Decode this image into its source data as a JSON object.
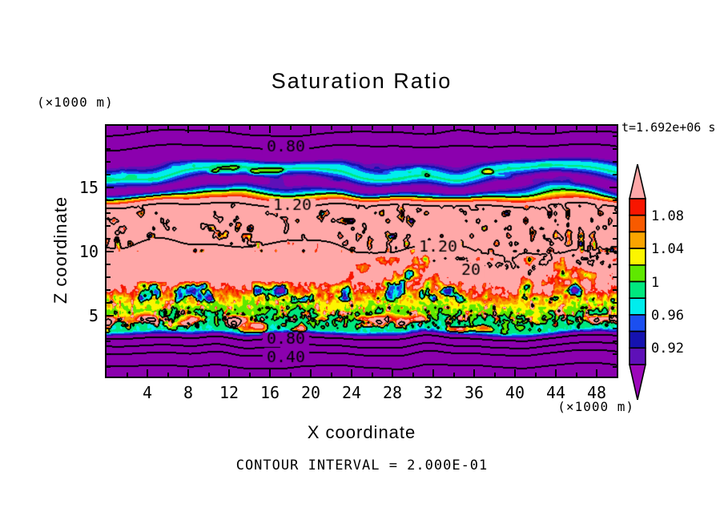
{
  "title": "Saturation Ratio",
  "annotations": {
    "z_units": "(×1000 m)",
    "x_units": "(×1000 m)",
    "time_label": "t=1.692e+06 s",
    "contour_interval_label": "CONTOUR INTERVAL = 2.000E-01"
  },
  "axes": {
    "x_label": "X coordinate",
    "y_label": "Z coordinate",
    "x_ticks": [
      4,
      8,
      12,
      16,
      20,
      24,
      28,
      32,
      36,
      40,
      44,
      48
    ],
    "y_ticks": [
      5,
      10,
      15
    ],
    "x_range": [
      0,
      50
    ],
    "z_range": [
      0.3,
      19.8
    ]
  },
  "colorbar": {
    "labels": [
      "1.08",
      "1.04",
      "1",
      "0.96",
      "0.92"
    ],
    "arrow_top_color": "#FFA8A8",
    "arrow_bottom_color": "#9C07BA",
    "segment_colors_top_to_bottom": [
      "#F81500",
      "#F85A00",
      "#FAA400",
      "#FCF500",
      "#5FE800",
      "#00E87E",
      "#00EDED",
      "#1B4FF0",
      "#1512B0",
      "#5E10B8"
    ]
  },
  "chart_data": {
    "type": "heatmap",
    "subtype": "filled-contour",
    "title": "Saturation Ratio",
    "xlabel": "X coordinate (×1000 m)",
    "ylabel": "Z coordinate (×1000 m)",
    "x_range": [
      0,
      50
    ],
    "z_range": [
      0,
      19.8
    ],
    "time_seconds": "1.692e+06",
    "contour_line_interval": 0.2,
    "fill_level_interval": 0.02,
    "fill_levels": [
      0.9,
      0.92,
      0.94,
      0.96,
      0.98,
      1.0,
      1.02,
      1.04,
      1.06,
      1.08,
      1.1
    ],
    "fill_colors_low_to_high": [
      "#8B00AE",
      "#5E10B8",
      "#1512B0",
      "#1B4FF0",
      "#00EDED",
      "#00E87E",
      "#5FE800",
      "#FCF500",
      "#FAA400",
      "#F85A00",
      "#F81500",
      "#FFA8A8"
    ],
    "contour_labels": [
      {
        "text": "0.80",
        "x": 17.6,
        "z": 18.13
      },
      {
        "text": "1.20",
        "x": 18.2,
        "z": 13.56
      },
      {
        "text": "1.20",
        "x": 32.5,
        "z": 10.31
      },
      {
        "text": "20",
        "x": 35.7,
        "z": 8.5
      },
      {
        "text": "0.80",
        "x": 17.6,
        "z": 3.13
      },
      {
        "text": "0.40",
        "x": 17.6,
        "z": 1.69
      }
    ],
    "mean_vertical_profile_knots": [
      [
        0.0,
        0.05
      ],
      [
        1.0,
        0.2
      ],
      [
        2.0,
        0.4
      ],
      [
        2.6,
        0.6
      ],
      [
        3.2,
        0.8
      ],
      [
        3.5,
        0.92
      ],
      [
        3.8,
        0.985
      ],
      [
        5.0,
        0.998
      ],
      [
        6.0,
        1.03
      ],
      [
        7.0,
        1.1
      ],
      [
        9.0,
        1.16
      ],
      [
        10.3,
        1.2
      ],
      [
        11.3,
        1.255
      ],
      [
        12.8,
        1.265
      ],
      [
        13.56,
        1.2
      ],
      [
        13.95,
        1.1
      ],
      [
        14.3,
        1.01
      ],
      [
        14.75,
        0.9
      ],
      [
        15.1,
        0.875
      ],
      [
        15.5,
        0.93
      ],
      [
        16.0,
        0.985
      ],
      [
        16.45,
        0.965
      ],
      [
        16.9,
        0.9
      ],
      [
        17.4,
        0.855
      ],
      [
        18.05,
        0.8
      ],
      [
        19.15,
        0.6
      ],
      [
        19.8,
        0.5
      ]
    ],
    "layers_description": [
      "z 0-3.2: subsaturated purple layer, horizontal contour lines 0.20/0.40/0.60/0.80",
      "z 3.5-6: near-saturated green band with supersaturated pink pockets (black 1.2 outlines)",
      "z 6-9.5: mottled transition, red/orange/yellow specks and green patches (stronger on right half)",
      "z 9.5-13.6: supersaturated pink region, S>1.2 core bounded by wavy 1.20 contours",
      "z 13.9-14.8: sharp rainbow gradient stripe (cloud top)",
      "z 14.8-16.9: wavy cyan/blue band peaking near S=1 with green blobs",
      "z 16.9-19.8: subsaturated purple layer, 0.80 contour near z=18"
    ]
  }
}
